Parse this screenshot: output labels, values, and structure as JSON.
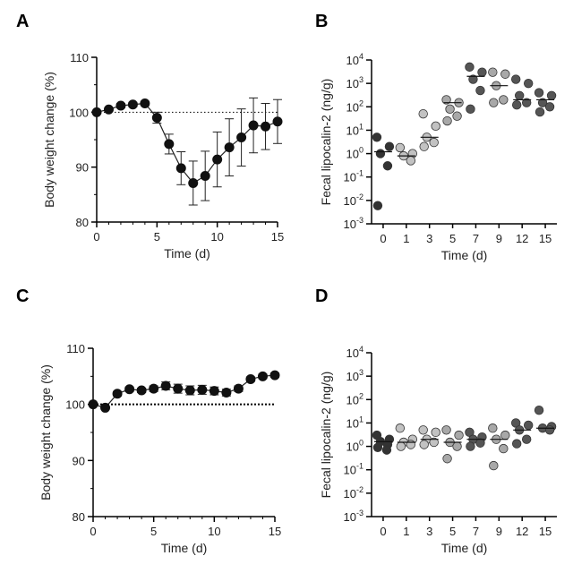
{
  "chart_data": [
    {
      "panel": "A",
      "type": "line",
      "xlabel": "Time (d)",
      "ylabel": "Body weight change (%)",
      "xlim": [
        0,
        15
      ],
      "ylim": [
        80,
        110
      ],
      "xticks": [
        "0",
        "5",
        "10",
        "15"
      ],
      "yticks": [
        "80",
        "90",
        "100",
        "110"
      ],
      "reference_line": 100,
      "series": [
        {
          "x": [
            0,
            1,
            2,
            3,
            4,
            5,
            6,
            7,
            8,
            9,
            10,
            11,
            12,
            13,
            14,
            15
          ],
          "y": [
            100,
            100.5,
            101.2,
            101.4,
            101.6,
            99,
            94.2,
            89.8,
            87.1,
            88.4,
            91.4,
            93.6,
            95.4,
            97.6,
            97.4,
            98.3
          ],
          "err": [
            0.3,
            0.3,
            0.4,
            0.4,
            0.4,
            1,
            1.8,
            3,
            4,
            4.5,
            5,
            5.2,
            5.2,
            5,
            4.2,
            4
          ]
        }
      ]
    },
    {
      "panel": "B",
      "type": "scatter",
      "xlabel": "Time (d)",
      "ylabel": "Fecal lipocalin-2 (ng/g)",
      "yscale": "log",
      "categories": [
        "0",
        "1",
        "3",
        "5",
        "7",
        "9",
        "12",
        "15"
      ],
      "ylim_exp": [
        -3,
        4
      ],
      "yticks_exp": [
        -3,
        -2,
        -1,
        0,
        1,
        2,
        3,
        4
      ],
      "groups": [
        {
          "day": "0",
          "color": "#333333",
          "points": [
            5,
            2,
            1,
            0.3,
            0.006
          ],
          "median": 1.2
        },
        {
          "day": "1",
          "color": "#c2c2c2",
          "points": [
            1.8,
            1,
            0.8,
            0.5
          ],
          "median": 0.8
        },
        {
          "day": "3",
          "color": "#c2c2c2",
          "points": [
            50,
            15,
            5,
            3,
            2
          ],
          "median": 5
        },
        {
          "day": "5",
          "color": "#a8a8a8",
          "points": [
            200,
            150,
            80,
            40,
            25
          ],
          "median": 150
        },
        {
          "day": "7",
          "color": "#555555",
          "points": [
            5000,
            3000,
            1500,
            500,
            80
          ],
          "median": 2000
        },
        {
          "day": "9",
          "color": "#a8a8a8",
          "points": [
            3000,
            2500,
            800,
            200,
            150
          ],
          "median": 800
        },
        {
          "day": "12",
          "color": "#555555",
          "points": [
            1500,
            1000,
            300,
            150,
            120
          ],
          "median": 200
        },
        {
          "day": "15",
          "color": "#555555",
          "points": [
            400,
            300,
            150,
            100,
            60
          ],
          "median": 200
        }
      ]
    },
    {
      "panel": "C",
      "type": "line",
      "xlabel": "Time (d)",
      "ylabel": "Body weight change (%)",
      "xlim": [
        0,
        15
      ],
      "ylim": [
        80,
        110
      ],
      "xticks": [
        "0",
        "5",
        "10",
        "15"
      ],
      "yticks": [
        "80",
        "90",
        "100",
        "110"
      ],
      "reference_line": 100,
      "series": [
        {
          "x": [
            0,
            1,
            2,
            3,
            4,
            5,
            6,
            7,
            8,
            9,
            10,
            11,
            12,
            13,
            14,
            15
          ],
          "y": [
            100,
            99.4,
            101.9,
            102.7,
            102.5,
            102.8,
            103.3,
            102.8,
            102.5,
            102.6,
            102.4,
            102.1,
            102.8,
            104.5,
            105,
            105.2
          ],
          "err": [
            0.2,
            0.3,
            0.4,
            0.4,
            0.4,
            0.5,
            0.7,
            0.8,
            0.8,
            0.8,
            0.7,
            0.6,
            0.5,
            0.4,
            0.4,
            0.4
          ]
        }
      ]
    },
    {
      "panel": "D",
      "type": "scatter",
      "xlabel": "Time (d)",
      "ylabel": "Fecal lipocalin-2 (ng/g)",
      "yscale": "log",
      "categories": [
        "0",
        "1",
        "3",
        "5",
        "7",
        "9",
        "12",
        "15"
      ],
      "ylim_exp": [
        -3,
        4
      ],
      "yticks_exp": [
        -3,
        -2,
        -1,
        0,
        1,
        2,
        3,
        4
      ],
      "groups": [
        {
          "day": "0",
          "color": "#333333",
          "points": [
            3,
            2,
            1.6,
            1.2,
            0.9,
            0.7
          ],
          "median": 1.6
        },
        {
          "day": "1",
          "color": "#c2c2c2",
          "points": [
            6,
            2,
            1.5,
            1.2,
            1
          ],
          "median": 1.5
        },
        {
          "day": "3",
          "color": "#c2c2c2",
          "points": [
            5,
            4,
            2,
            1.5,
            1.2
          ],
          "median": 2
        },
        {
          "day": "5",
          "color": "#a8a8a8",
          "points": [
            5,
            3,
            1.5,
            1,
            0.3
          ],
          "median": 1.5
        },
        {
          "day": "7",
          "color": "#555555",
          "points": [
            4,
            2.5,
            2,
            1.4,
            1
          ],
          "median": 2
        },
        {
          "day": "9",
          "color": "#a8a8a8",
          "points": [
            6,
            3,
            2,
            0.8,
            0.15
          ],
          "median": 2
        },
        {
          "day": "12",
          "color": "#555555",
          "points": [
            10,
            8,
            5,
            2,
            1.3
          ],
          "median": 5
        },
        {
          "day": "15",
          "color": "#555555",
          "points": [
            35,
            7,
            6,
            5
          ],
          "median": 6
        }
      ]
    }
  ],
  "panel_labels": [
    "A",
    "B",
    "C",
    "D"
  ]
}
